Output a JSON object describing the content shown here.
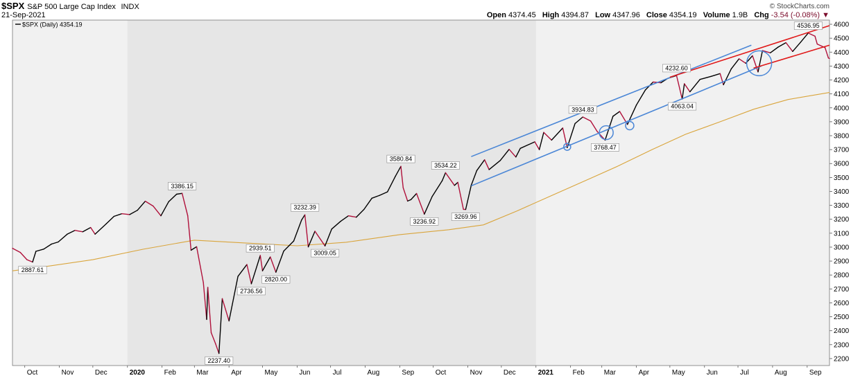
{
  "header": {
    "symbol": "$SPX",
    "name": "S&P 500 Large Cap Index",
    "exchange": "INDX",
    "date": "21-Sep-2021",
    "brand": "© StockCharts.com",
    "quote": {
      "open_label": "Open",
      "open": "4374.45",
      "high_label": "High",
      "high": "4394.87",
      "low_label": "Low",
      "low": "4347.96",
      "close_label": "Close",
      "close": "4354.19",
      "volume_label": "Volume",
      "volume": "1.9B",
      "chg_label": "Chg",
      "chg": "-3.54 (-0.08%)"
    }
  },
  "chart_data": {
    "type": "line",
    "legend": {
      "text": "$SPX (Daily) 4354.19",
      "placement": "top-left"
    },
    "ylim": [
      2150,
      4630
    ],
    "y_ticks": [
      2200,
      2300,
      2400,
      2500,
      2600,
      2700,
      2800,
      2900,
      3000,
      3100,
      3200,
      3300,
      3400,
      3500,
      3600,
      3700,
      3800,
      3900,
      4000,
      4100,
      4200,
      4300,
      4400,
      4500,
      4600
    ],
    "x_range": [
      "2019-09-20",
      "2021-09-21"
    ],
    "x_ticks": [
      {
        "date": "2019-10-01",
        "label": "Oct",
        "bold": false
      },
      {
        "date": "2019-11-01",
        "label": "Nov",
        "bold": false
      },
      {
        "date": "2019-12-01",
        "label": "Dec",
        "bold": false
      },
      {
        "date": "2020-01-01",
        "label": "2020",
        "bold": true
      },
      {
        "date": "2020-02-01",
        "label": "Feb",
        "bold": false
      },
      {
        "date": "2020-03-01",
        "label": "Mar",
        "bold": false
      },
      {
        "date": "2020-04-01",
        "label": "Apr",
        "bold": false
      },
      {
        "date": "2020-05-01",
        "label": "May",
        "bold": false
      },
      {
        "date": "2020-06-01",
        "label": "Jun",
        "bold": false
      },
      {
        "date": "2020-07-01",
        "label": "Jul",
        "bold": false
      },
      {
        "date": "2020-08-01",
        "label": "Aug",
        "bold": false
      },
      {
        "date": "2020-09-01",
        "label": "Sep",
        "bold": false
      },
      {
        "date": "2020-10-01",
        "label": "Oct",
        "bold": false
      },
      {
        "date": "2020-11-01",
        "label": "Nov",
        "bold": false
      },
      {
        "date": "2020-12-01",
        "label": "Dec",
        "bold": false
      },
      {
        "date": "2021-01-01",
        "label": "2021",
        "bold": true
      },
      {
        "date": "2021-02-01",
        "label": "Feb",
        "bold": false
      },
      {
        "date": "2021-03-01",
        "label": "Mar",
        "bold": false
      },
      {
        "date": "2021-04-01",
        "label": "Apr",
        "bold": false
      },
      {
        "date": "2021-05-01",
        "label": "May",
        "bold": false
      },
      {
        "date": "2021-06-01",
        "label": "Jun",
        "bold": false
      },
      {
        "date": "2021-07-01",
        "label": "Jul",
        "bold": false
      },
      {
        "date": "2021-08-01",
        "label": "Aug",
        "bold": false
      },
      {
        "date": "2021-09-01",
        "label": "Sep",
        "bold": false
      }
    ],
    "shaded_years": [
      {
        "from": "2020-01-01",
        "to": "2021-01-01",
        "color": "#e6e6e6"
      }
    ],
    "background_color": "#f1f1f1",
    "colors": {
      "price": "#000000",
      "price_down": "#b0103a",
      "ma": "#d9a43a",
      "channel_blue": "#4a86d6",
      "channel_red": "#e01818"
    },
    "series": [
      {
        "role": "price",
        "points": [
          [
            "2019-09-20",
            2992
          ],
          [
            "2019-09-27",
            2962
          ],
          [
            "2019-10-03",
            2910
          ],
          [
            "2019-10-08",
            2893
          ],
          [
            "2019-10-11",
            2970
          ],
          [
            "2019-10-18",
            2986
          ],
          [
            "2019-10-25",
            3022
          ],
          [
            "2019-10-31",
            3037
          ],
          [
            "2019-11-08",
            3093
          ],
          [
            "2019-11-15",
            3120
          ],
          [
            "2019-11-22",
            3110
          ],
          [
            "2019-11-29",
            3141
          ],
          [
            "2019-12-03",
            3093
          ],
          [
            "2019-12-13",
            3168
          ],
          [
            "2019-12-20",
            3221
          ],
          [
            "2019-12-27",
            3240
          ],
          [
            "2020-01-03",
            3234
          ],
          [
            "2020-01-10",
            3265
          ],
          [
            "2020-01-17",
            3330
          ],
          [
            "2020-01-24",
            3295
          ],
          [
            "2020-01-31",
            3225
          ],
          [
            "2020-02-07",
            3327
          ],
          [
            "2020-02-14",
            3380
          ],
          [
            "2020-02-19",
            3386
          ],
          [
            "2020-02-24",
            3225
          ],
          [
            "2020-02-27",
            2978
          ],
          [
            "2020-03-03",
            3003
          ],
          [
            "2020-03-09",
            2746
          ],
          [
            "2020-03-12",
            2481
          ],
          [
            "2020-03-13",
            2711
          ],
          [
            "2020-03-16",
            2386
          ],
          [
            "2020-03-20",
            2305
          ],
          [
            "2020-03-23",
            2237
          ],
          [
            "2020-03-26",
            2630
          ],
          [
            "2020-04-01",
            2470
          ],
          [
            "2020-04-09",
            2790
          ],
          [
            "2020-04-17",
            2875
          ],
          [
            "2020-04-21",
            2737
          ],
          [
            "2020-04-29",
            2940
          ],
          [
            "2020-05-01",
            2830
          ],
          [
            "2020-05-08",
            2930
          ],
          [
            "2020-05-13",
            2820
          ],
          [
            "2020-05-20",
            2972
          ],
          [
            "2020-05-29",
            3044
          ],
          [
            "2020-06-05",
            3194
          ],
          [
            "2020-06-08",
            3232
          ],
          [
            "2020-06-11",
            3002
          ],
          [
            "2020-06-17",
            3114
          ],
          [
            "2020-06-26",
            3009
          ],
          [
            "2020-07-02",
            3130
          ],
          [
            "2020-07-10",
            3185
          ],
          [
            "2020-07-17",
            3225
          ],
          [
            "2020-07-24",
            3215
          ],
          [
            "2020-07-31",
            3271
          ],
          [
            "2020-08-07",
            3351
          ],
          [
            "2020-08-14",
            3372
          ],
          [
            "2020-08-21",
            3397
          ],
          [
            "2020-08-28",
            3508
          ],
          [
            "2020-09-02",
            3580
          ],
          [
            "2020-09-04",
            3427
          ],
          [
            "2020-09-08",
            3331
          ],
          [
            "2020-09-11",
            3341
          ],
          [
            "2020-09-16",
            3385
          ],
          [
            "2020-09-23",
            3237
          ],
          [
            "2020-09-30",
            3363
          ],
          [
            "2020-10-09",
            3477
          ],
          [
            "2020-10-12",
            3534
          ],
          [
            "2020-10-20",
            3443
          ],
          [
            "2020-10-23",
            3465
          ],
          [
            "2020-10-28",
            3271
          ],
          [
            "2020-10-30",
            3270
          ],
          [
            "2020-11-04",
            3443
          ],
          [
            "2020-11-09",
            3550
          ],
          [
            "2020-11-16",
            3627
          ],
          [
            "2020-11-20",
            3557
          ],
          [
            "2020-11-30",
            3622
          ],
          [
            "2020-12-08",
            3702
          ],
          [
            "2020-12-14",
            3647
          ],
          [
            "2020-12-18",
            3709
          ],
          [
            "2020-12-31",
            3756
          ],
          [
            "2021-01-04",
            3700
          ],
          [
            "2021-01-08",
            3824
          ],
          [
            "2021-01-15",
            3768
          ],
          [
            "2021-01-25",
            3855
          ],
          [
            "2021-01-29",
            3714
          ],
          [
            "2021-02-05",
            3887
          ],
          [
            "2021-02-12",
            3934
          ],
          [
            "2021-02-19",
            3906
          ],
          [
            "2021-02-25",
            3829
          ],
          [
            "2021-03-04",
            3768
          ],
          [
            "2021-03-11",
            3939
          ],
          [
            "2021-03-17",
            3974
          ],
          [
            "2021-03-24",
            3881
          ],
          [
            "2021-04-01",
            4020
          ],
          [
            "2021-04-09",
            4128
          ],
          [
            "2021-04-16",
            4185
          ],
          [
            "2021-04-23",
            4180
          ],
          [
            "2021-04-29",
            4211
          ],
          [
            "2021-05-07",
            4232
          ],
          [
            "2021-05-12",
            4063
          ],
          [
            "2021-05-14",
            4173
          ],
          [
            "2021-05-19",
            4115
          ],
          [
            "2021-05-28",
            4204
          ],
          [
            "2021-06-07",
            4226
          ],
          [
            "2021-06-15",
            4246
          ],
          [
            "2021-06-18",
            4166
          ],
          [
            "2021-06-25",
            4280
          ],
          [
            "2021-07-02",
            4352
          ],
          [
            "2021-07-08",
            4320
          ],
          [
            "2021-07-14",
            4374
          ],
          [
            "2021-07-19",
            4258
          ],
          [
            "2021-07-23",
            4411
          ],
          [
            "2021-07-30",
            4395
          ],
          [
            "2021-08-06",
            4436
          ],
          [
            "2021-08-13",
            4468
          ],
          [
            "2021-08-19",
            4405
          ],
          [
            "2021-08-26",
            4470
          ],
          [
            "2021-09-02",
            4537
          ],
          [
            "2021-09-08",
            4514
          ],
          [
            "2021-09-10",
            4458
          ],
          [
            "2021-09-14",
            4443
          ],
          [
            "2021-09-17",
            4432
          ],
          [
            "2021-09-20",
            4358
          ],
          [
            "2021-09-21",
            4354
          ]
        ]
      },
      {
        "role": "moving-average",
        "points": [
          [
            "2019-09-20",
            2830
          ],
          [
            "2019-10-15",
            2855
          ],
          [
            "2019-12-01",
            2910
          ],
          [
            "2020-01-15",
            2985
          ],
          [
            "2020-03-01",
            3050
          ],
          [
            "2020-04-15",
            3030
          ],
          [
            "2020-06-01",
            3010
          ],
          [
            "2020-07-15",
            3035
          ],
          [
            "2020-09-01",
            3090
          ],
          [
            "2020-10-15",
            3125
          ],
          [
            "2020-11-15",
            3160
          ],
          [
            "2020-12-15",
            3260
          ],
          [
            "2021-01-15",
            3370
          ],
          [
            "2021-02-15",
            3480
          ],
          [
            "2021-03-15",
            3580
          ],
          [
            "2021-04-15",
            3700
          ],
          [
            "2021-05-15",
            3810
          ],
          [
            "2021-06-15",
            3900
          ],
          [
            "2021-07-15",
            3990
          ],
          [
            "2021-08-15",
            4060
          ],
          [
            "2021-09-21",
            4110
          ]
        ]
      }
    ],
    "annotations": [
      {
        "date": "2019-10-08",
        "price": 2887.61,
        "text": "2887.61",
        "pos": "below"
      },
      {
        "date": "2020-02-19",
        "price": 3386.15,
        "text": "3386.15",
        "pos": "above"
      },
      {
        "date": "2020-03-23",
        "price": 2237.4,
        "text": "2237.40",
        "pos": "below"
      },
      {
        "date": "2020-04-21",
        "price": 2736.56,
        "text": "2736.56",
        "pos": "below"
      },
      {
        "date": "2020-04-29",
        "price": 2939.51,
        "text": "2939.51",
        "pos": "above"
      },
      {
        "date": "2020-05-13",
        "price": 2820.0,
        "text": "2820.00",
        "pos": "below"
      },
      {
        "date": "2020-06-08",
        "price": 3232.39,
        "text": "3232.39",
        "pos": "above"
      },
      {
        "date": "2020-06-26",
        "price": 3009.05,
        "text": "3009.05",
        "pos": "below"
      },
      {
        "date": "2020-09-02",
        "price": 3580.84,
        "text": "3580.84",
        "pos": "above"
      },
      {
        "date": "2020-09-23",
        "price": 3236.92,
        "text": "3236.92",
        "pos": "below"
      },
      {
        "date": "2020-10-12",
        "price": 3534.22,
        "text": "3534.22",
        "pos": "above"
      },
      {
        "date": "2020-10-30",
        "price": 3269.96,
        "text": "3269.96",
        "pos": "below"
      },
      {
        "date": "2021-02-12",
        "price": 3934.83,
        "text": "3934.83",
        "pos": "above"
      },
      {
        "date": "2021-03-04",
        "price": 3768.47,
        "text": "3768.47",
        "pos": "below"
      },
      {
        "date": "2021-05-07",
        "price": 4232.6,
        "text": "4232.60",
        "pos": "above"
      },
      {
        "date": "2021-05-12",
        "price": 4063.04,
        "text": "4063.04",
        "pos": "below"
      },
      {
        "date": "2021-09-02",
        "price": 4536.95,
        "text": "4536.95",
        "pos": "above"
      }
    ],
    "trendlines": [
      {
        "color": "blue",
        "from": [
          "2020-11-04",
          3650
        ],
        "to": [
          "2021-07-13",
          4450
        ]
      },
      {
        "color": "blue",
        "from": [
          "2020-11-04",
          3440
        ],
        "to": [
          "2021-07-22",
          4300
        ]
      },
      {
        "color": "red",
        "from": [
          "2021-05-01",
          4220
        ],
        "to": [
          "2021-09-21",
          4590
        ]
      },
      {
        "color": "red",
        "from": [
          "2021-07-15",
          4285
        ],
        "to": [
          "2021-09-21",
          4450
        ]
      }
    ],
    "circles": [
      {
        "date": "2021-01-29",
        "price": 3720,
        "r": 5
      },
      {
        "date": "2021-03-05",
        "price": 3822,
        "r": 10
      },
      {
        "date": "2021-03-26",
        "price": 3872,
        "r": 6
      },
      {
        "date": "2021-07-20",
        "price": 4320,
        "r": 18
      }
    ]
  }
}
